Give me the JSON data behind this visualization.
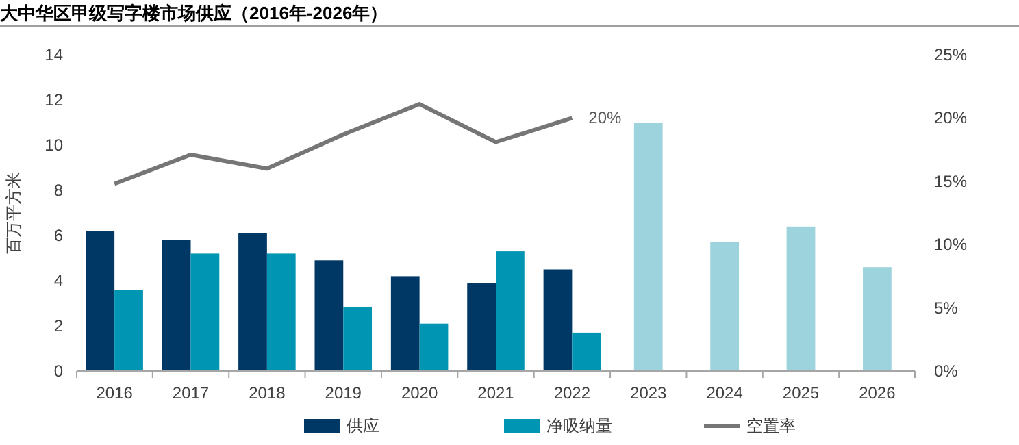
{
  "chart_data": {
    "type": "bar",
    "title": "大中华区甲级写字楼市场供应（2016年-2026年）",
    "ylabel": "百万平方米",
    "categories": [
      "2016",
      "2017",
      "2018",
      "2019",
      "2020",
      "2021",
      "2022",
      "2023",
      "2024",
      "2025",
      "2026"
    ],
    "series": [
      {
        "name": "供应",
        "color": "#003865",
        "values": [
          6.2,
          5.8,
          6.1,
          4.9,
          4.2,
          3.9,
          4.5,
          null,
          null,
          null,
          null
        ]
      },
      {
        "name": "净吸纳量",
        "color": "#0095b3",
        "colors": [
          "#0095b3",
          "#0095b3",
          "#0095b3",
          "#0095b3",
          "#0095b3",
          "#0095b3",
          "#0095b3",
          "#9dd3dc",
          "#9dd3dc",
          "#9dd3dc",
          "#9dd3dc"
        ],
        "values": [
          3.6,
          5.2,
          5.2,
          2.85,
          2.1,
          5.3,
          1.7,
          11.0,
          5.7,
          6.4,
          4.6
        ]
      },
      {
        "name": "空置率",
        "type": "line",
        "axis": "y2",
        "color": "#767676",
        "values": [
          14.8,
          17.1,
          16.0,
          18.7,
          21.1,
          18.1,
          20,
          null,
          null,
          null,
          null
        ],
        "value_labels": [
          null,
          null,
          null,
          null,
          null,
          null,
          "20%",
          null,
          null,
          null,
          null
        ]
      }
    ],
    "ylim": [
      0,
      14
    ],
    "yticks": [
      0,
      2,
      4,
      6,
      8,
      10,
      12,
      14
    ],
    "y2lim": [
      0,
      25
    ],
    "y2ticks": [
      {
        "value": 0,
        "label": "0%"
      },
      {
        "value": 5,
        "label": "5%"
      },
      {
        "value": 10,
        "label": "10%"
      },
      {
        "value": 15,
        "label": "15%"
      },
      {
        "value": 20,
        "label": "20%"
      },
      {
        "value": 25,
        "label": "25%"
      }
    ],
    "grid": false,
    "legend": "bottom",
    "line_style": "solid",
    "marker": "none"
  }
}
